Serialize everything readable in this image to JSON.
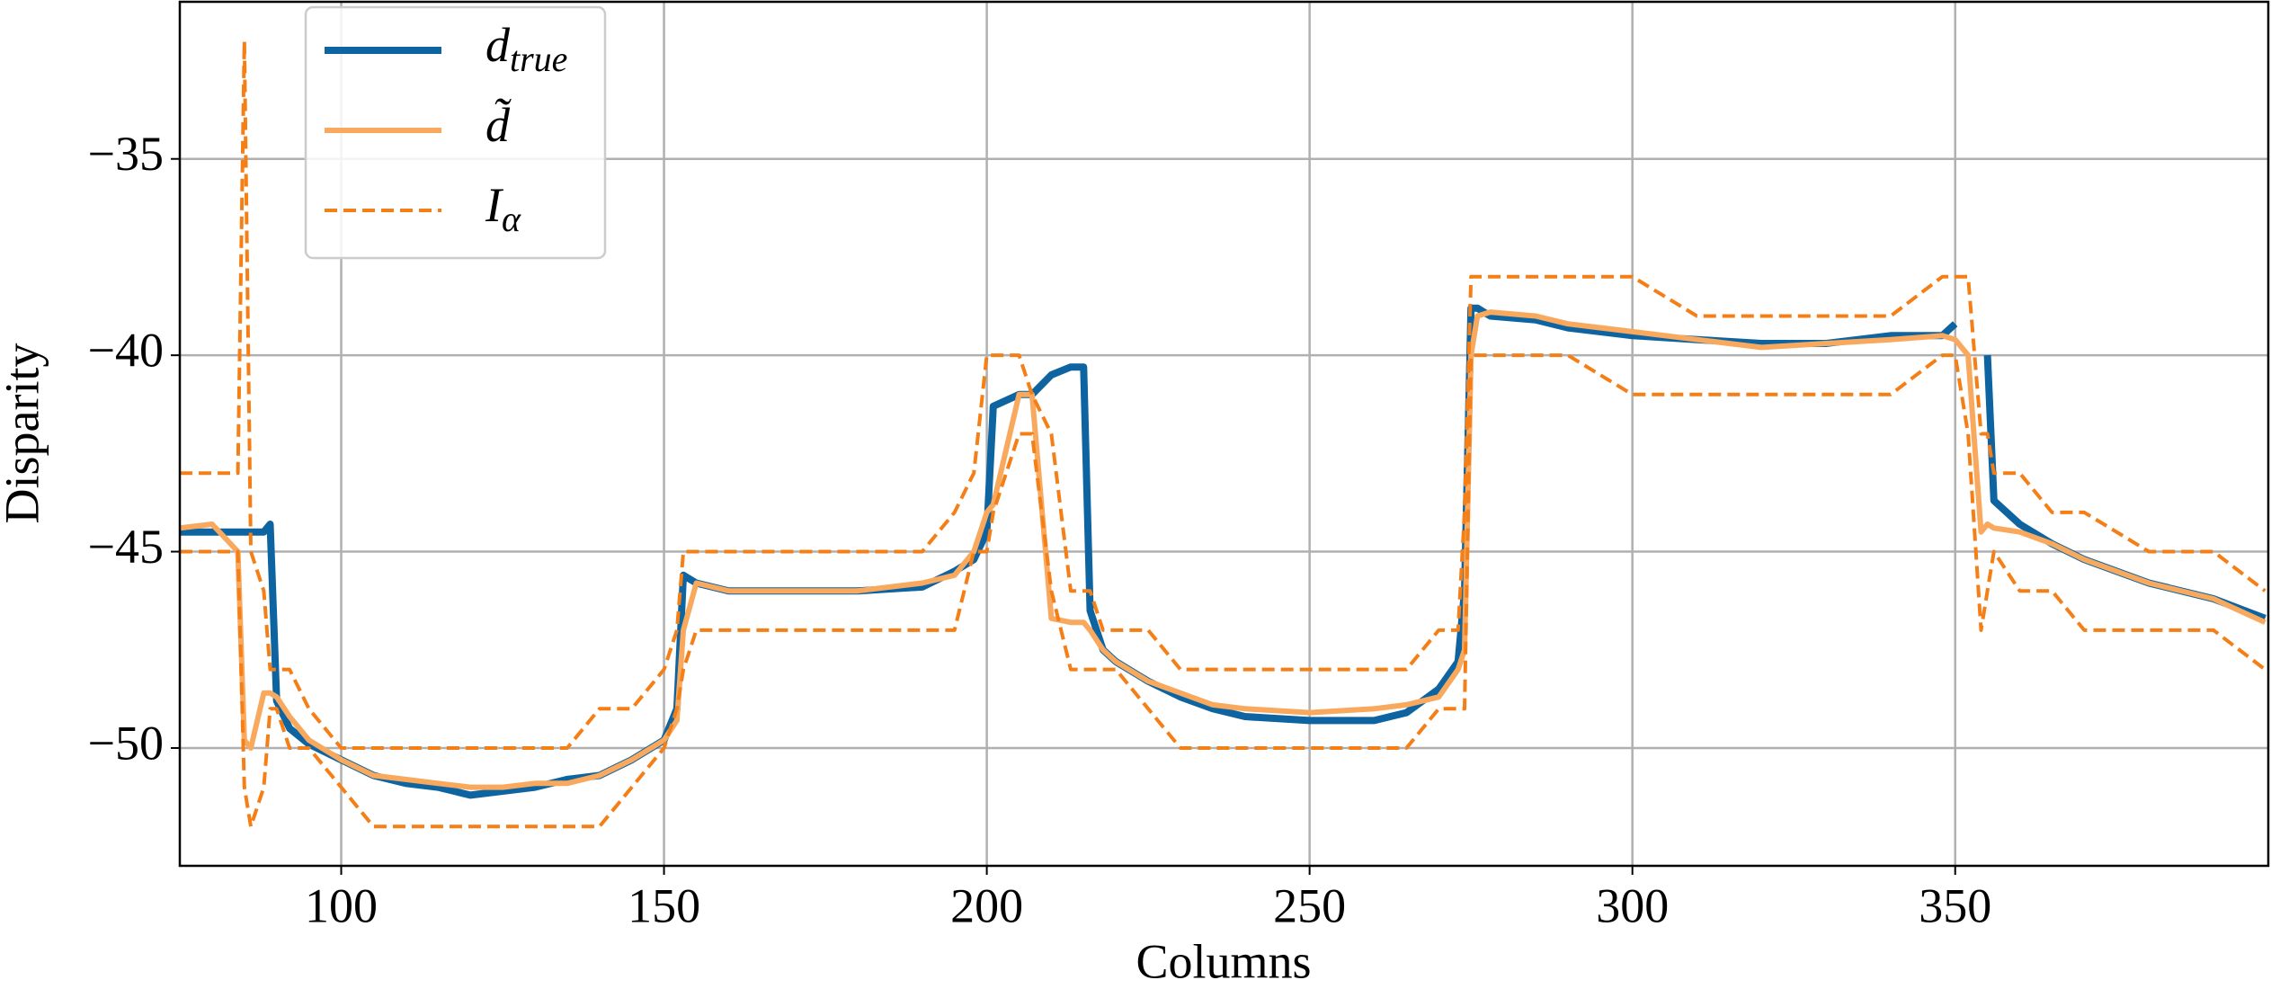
{
  "chart_data": {
    "type": "line",
    "xlabel": "Columns",
    "ylabel": "Disparity",
    "xlim": [
      75,
      398.5
    ],
    "ylim": [
      -53,
      -31
    ],
    "xticks": [
      100,
      150,
      200,
      250,
      300,
      350
    ],
    "yticks": [
      {
        "value": -50,
        "label": "−50"
      },
      {
        "value": -45,
        "label": "−45"
      },
      {
        "value": -40,
        "label": "−40"
      },
      {
        "value": -35,
        "label": "−35"
      }
    ],
    "grid": true,
    "legend": "upper left",
    "x": [
      75,
      80,
      84,
      85,
      86,
      88,
      89,
      90,
      92,
      95,
      100,
      105,
      110,
      115,
      120,
      125,
      130,
      135,
      140,
      145,
      150,
      152,
      153,
      155,
      160,
      170,
      180,
      190,
      195,
      198,
      200,
      201,
      205,
      207,
      210,
      213,
      215,
      216,
      218,
      220,
      225,
      230,
      235,
      240,
      250,
      260,
      265,
      270,
      273,
      274,
      275,
      276,
      278,
      285,
      290,
      300,
      310,
      320,
      330,
      340,
      348,
      350,
      352,
      354,
      355,
      356,
      360,
      365,
      370,
      380,
      390,
      398
    ],
    "series": [
      {
        "name": "d",
        "subscript": "true",
        "color": "#0d64a0",
        "values": [
          -44.5,
          -44.5,
          -44.5,
          -44.5,
          -44.5,
          -44.5,
          -44.3,
          -48.8,
          -49.5,
          -49.9,
          -50.3,
          -50.7,
          -50.9,
          -51,
          -51.2,
          -51.1,
          -51,
          -50.8,
          -50.7,
          -50.3,
          -49.8,
          -49,
          -45.6,
          -45.8,
          -46,
          -46,
          -46,
          -45.9,
          -45.5,
          -45.2,
          -44.5,
          -41.3,
          -41,
          -41,
          -40.5,
          -40.3,
          -40.3,
          -46.5,
          -47.5,
          -47.8,
          -48.3,
          -48.7,
          -49,
          -49.2,
          -49.3,
          -49.3,
          -49.1,
          -48.5,
          -47.8,
          -46,
          -38.8,
          -38.8,
          -39,
          -39.1,
          -39.3,
          -39.5,
          -39.6,
          -39.7,
          -39.7,
          -39.5,
          -39.5,
          -39.2,
          null,
          null,
          -40,
          -43.7,
          -44.3,
          -44.8,
          -45.2,
          -45.8,
          -46.2,
          -46.7
        ]
      },
      {
        "name": "d̃",
        "color": "#f8a95e",
        "values": [
          -44.4,
          -44.3,
          -45,
          -49.8,
          -50,
          -48.6,
          -48.6,
          -48.7,
          -49.2,
          -49.8,
          -50.3,
          -50.7,
          -50.8,
          -50.9,
          -51,
          -51,
          -50.9,
          -50.9,
          -50.7,
          -50.3,
          -49.8,
          -49.3,
          -47,
          -45.8,
          -46,
          -46,
          -46,
          -45.8,
          -45.6,
          -45,
          -44,
          -43.8,
          -41,
          -41,
          -46.7,
          -46.8,
          -46.8,
          -47,
          -47.5,
          -47.8,
          -48.3,
          -48.6,
          -48.9,
          -49,
          -49.1,
          -49,
          -48.9,
          -48.7,
          -48,
          -47.5,
          -40,
          -39,
          -38.9,
          -39,
          -39.2,
          -39.4,
          -39.6,
          -39.8,
          -39.7,
          -39.6,
          -39.5,
          -39.6,
          -40,
          -44.5,
          -44.3,
          -44.4,
          -44.5,
          -44.8,
          -45.2,
          -45.8,
          -46.2,
          -46.8
        ]
      },
      {
        "name": "I",
        "subscript": "α",
        "color": "#f57f17",
        "dashed": true,
        "high": [
          -43,
          -43,
          -43,
          -32,
          -45,
          -46,
          -48,
          -48,
          -48,
          -49,
          -50,
          -50,
          -50,
          -50,
          -50,
          -50,
          -50,
          -50,
          -49,
          -49,
          -48,
          -47,
          -45,
          -45,
          -45,
          -45,
          -45,
          -45,
          -44,
          -43,
          -40,
          -40,
          -40,
          -41,
          -42,
          -46,
          -46,
          -46,
          -47,
          -47,
          -47,
          -48,
          -48,
          -48,
          -48,
          -48,
          -48,
          -47,
          -47,
          -44,
          -38,
          -38,
          -38,
          -38,
          -38,
          -38,
          -39,
          -39,
          -39,
          -39,
          -38,
          -38,
          -38,
          -42,
          -42,
          -43,
          -43,
          -44,
          -44,
          -45,
          -45,
          -46
        ],
        "low": [
          -45,
          -45,
          -45,
          -51,
          -52,
          -51,
          -49,
          -49,
          -50,
          -50,
          -51,
          -52,
          -52,
          -52,
          -52,
          -52,
          -52,
          -52,
          -52,
          -51,
          -50,
          -49,
          -48,
          -47,
          -47,
          -47,
          -47,
          -47,
          -47,
          -45,
          -45,
          -44,
          -42,
          -42,
          -46,
          -48,
          -48,
          -48,
          -48,
          -48,
          -49,
          -50,
          -50,
          -50,
          -50,
          -50,
          -50,
          -49,
          -49,
          -49,
          -40,
          -40,
          -40,
          -40,
          -40,
          -41,
          -41,
          -41,
          -41,
          -41,
          -40,
          -40,
          -42,
          -47,
          -46,
          -45,
          -46,
          -46,
          -47,
          -47,
          -47,
          -48
        ]
      }
    ]
  }
}
